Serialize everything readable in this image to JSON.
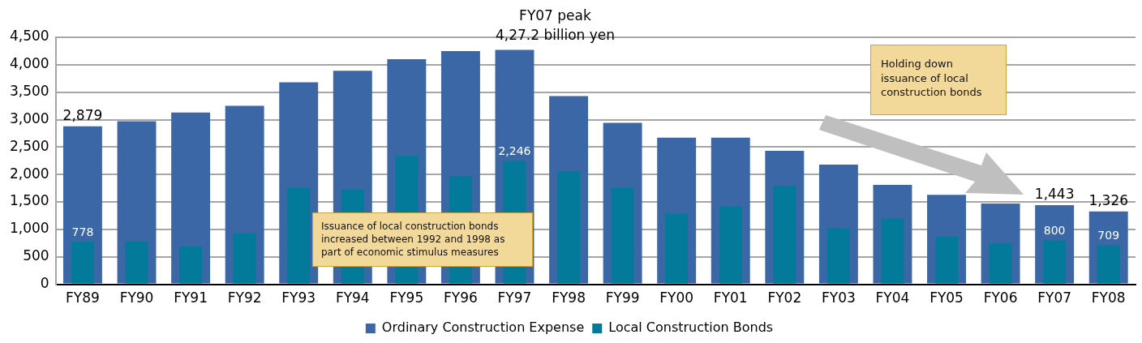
{
  "chart_data": {
    "type": "bar",
    "categories": [
      "FY89",
      "FY90",
      "FY91",
      "FY92",
      "FY93",
      "FY94",
      "FY95",
      "FY96",
      "FY97",
      "FY98",
      "FY99",
      "FY00",
      "FY01",
      "FY02",
      "FY03",
      "FY04",
      "FY05",
      "FY06",
      "FY07",
      "FY08"
    ],
    "series": [
      {
        "name": "Ordinary Construction Expense",
        "color": "#3c67a6",
        "values": [
          2879,
          2970,
          3130,
          3250,
          3680,
          3890,
          4100,
          4250,
          4272,
          3430,
          2940,
          2670,
          2670,
          2430,
          2180,
          1810,
          1630,
          1470,
          1443,
          1326
        ],
        "value_labels": [
          "2,879",
          null,
          null,
          null,
          null,
          null,
          null,
          null,
          null,
          null,
          null,
          null,
          null,
          null,
          null,
          null,
          null,
          null,
          "1,443",
          "1,326"
        ]
      },
      {
        "name": "Local Construction Bonds",
        "color": "#037a99",
        "values": [
          778,
          778,
          689,
          935,
          1760,
          1727,
          2340,
          1973,
          2246,
          2060,
          1755,
          1290,
          1420,
          1790,
          1020,
          1200,
          870,
          745,
          800,
          709
        ],
        "value_labels": [
          "778",
          null,
          null,
          null,
          null,
          null,
          null,
          null,
          "2,246",
          null,
          null,
          null,
          null,
          null,
          null,
          null,
          null,
          null,
          "800",
          "709"
        ]
      }
    ],
    "ylim": [
      0,
      4500
    ],
    "yticks": [
      0,
      500,
      {
        "value": 1000,
        "label": "1,000"
      },
      {
        "value": 1500,
        "label": "1,500"
      },
      {
        "value": 2000,
        "label": "2,000"
      },
      {
        "value": 2500,
        "label": "2,500"
      },
      {
        "value": 3000,
        "label": "3,000"
      },
      {
        "value": 3500,
        "label": "3,500"
      },
      {
        "value": 4000,
        "label": "4,000"
      },
      {
        "value": 4500,
        "label": "4,500"
      }
    ],
    "grid": "y",
    "legend": "bottom",
    "annotations": [
      {
        "text": "FY07 peak\n4,27.2 billion yen",
        "x": "FY97",
        "y": 4272
      },
      "Issuance of local construction bonds increased between 1992 and 1998 as part of economic stimulus measures",
      "Holding down issuance of local construction bonds"
    ]
  }
}
